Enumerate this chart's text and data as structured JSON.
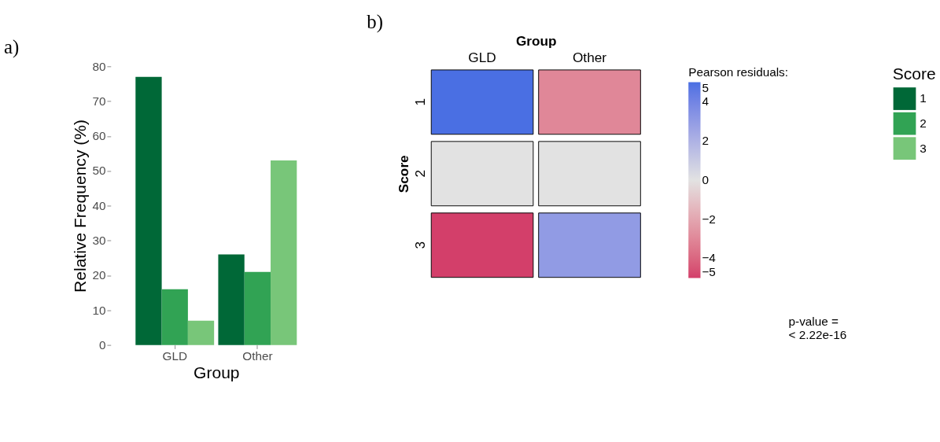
{
  "chart_data": [
    {
      "type": "bar",
      "title": "a)",
      "xlabel": "Group",
      "ylabel": "Relative Frequency (%)",
      "legend_title": "Score",
      "legend": "right",
      "grid": false,
      "categories": [
        "GLD",
        "Other"
      ],
      "series": [
        {
          "name": "1",
          "color": "#006837",
          "values": [
            77,
            26
          ]
        },
        {
          "name": "2",
          "color": "#31a354",
          "values": [
            16,
            21
          ]
        },
        {
          "name": "3",
          "color": "#78c679",
          "values": [
            7,
            53
          ]
        }
      ],
      "ylim": [
        0,
        80
      ],
      "yticks": [
        0,
        10,
        20,
        30,
        40,
        50,
        60,
        70,
        80
      ]
    },
    {
      "type": "heatmap",
      "title": "b)",
      "xlabel": "Group",
      "ylabel": "Score",
      "clabel": "Pearson residuals:",
      "categories": [
        "GLD",
        "Other"
      ],
      "y_categories": [
        "1",
        "2",
        "3"
      ],
      "cells": [
        [
          5,
          -3
        ],
        [
          0,
          0
        ],
        [
          -5,
          3
        ]
      ],
      "clim": [
        -5,
        5
      ],
      "cticks": [
        -5,
        -4,
        -2,
        0,
        2,
        4,
        5
      ],
      "annotations": [
        "p-value =",
        "< 2.22e-16"
      ]
    }
  ]
}
